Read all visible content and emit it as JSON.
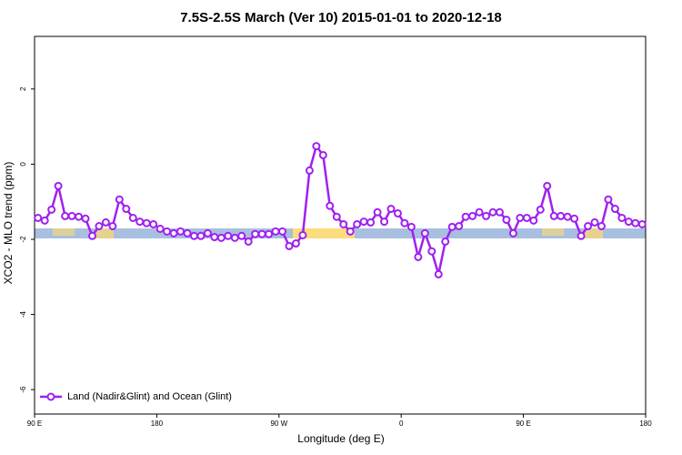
{
  "chart_data": {
    "type": "line",
    "title": "7.5S-2.5S March (Ver 10)   2015-01-01 to 2020-12-18",
    "x_label": "Longitude (deg E)",
    "y_label": "XCO2 - MLO trend (ppm)",
    "xlim": [
      90,
      540
    ],
    "ylim": [
      -6.65,
      3.4
    ],
    "xticks": [
      {
        "value": 90,
        "label": "90 E"
      },
      180,
      {
        "value": 270,
        "label": "90 W"
      },
      {
        "value": 360,
        "label": "0"
      },
      {
        "value": 450,
        "label": "90 E"
      },
      {
        "value": 540,
        "label": "180"
      }
    ],
    "yticks": [
      2,
      0,
      -2,
      -4,
      -6
    ],
    "grid": false,
    "legend": "bottom-left",
    "x": [
      92.5,
      97.5,
      102.5,
      107.5,
      112.5,
      117.5,
      122.5,
      127.5,
      132.5,
      137.5,
      142.5,
      147.5,
      152.5,
      157.5,
      162.5,
      167.5,
      172.5,
      177.5,
      182.5,
      187.5,
      192.5,
      197.5,
      202.5,
      207.5,
      212.5,
      217.5,
      222.5,
      227.5,
      232.5,
      237.5,
      242.5,
      247.5,
      252.5,
      257.5,
      262.5,
      267.5,
      272.5,
      277.5,
      282.5,
      287.5,
      292.5,
      297.5,
      302.5,
      307.5,
      312.5,
      317.5,
      322.5,
      327.5,
      332.5,
      337.5,
      342.5,
      347.5,
      352.5,
      357.5,
      362.5,
      367.5,
      372.5,
      377.5,
      382.5,
      387.5,
      392.5,
      397.5,
      402.5,
      407.5,
      412.5,
      417.5,
      422.5,
      427.5,
      432.5,
      437.5,
      442.5,
      447.5,
      452.5,
      457.5,
      462.5,
      467.5,
      472.5,
      477.5,
      482.5,
      487.5,
      492.5,
      497.5,
      502.5,
      507.5,
      512.5,
      517.5,
      522.5,
      527.5,
      532.5,
      537.5
    ],
    "series": [
      {
        "name": "Land (Nadir&Glint) and Ocean (Glint)",
        "color": "#a020f0",
        "values": [
          -1.43,
          -1.5,
          -1.21,
          -0.58,
          -1.38,
          -1.38,
          -1.4,
          -1.45,
          -1.91,
          -1.65,
          -1.55,
          -1.65,
          -0.94,
          -1.19,
          -1.43,
          -1.53,
          -1.57,
          -1.6,
          -1.72,
          -1.79,
          -1.84,
          -1.79,
          -1.84,
          -1.91,
          -1.91,
          -1.84,
          -1.94,
          -1.96,
          -1.91,
          -1.96,
          -1.91,
          -2.06,
          -1.86,
          -1.86,
          -1.86,
          -1.79,
          -1.79,
          -2.18,
          -2.11,
          -1.89,
          -0.17,
          0.48,
          0.24,
          -1.11,
          -1.4,
          -1.6,
          -1.79,
          -1.6,
          -1.53,
          -1.55,
          -1.28,
          -1.53,
          -1.19,
          -1.31,
          -1.57,
          -1.67,
          -2.47,
          -1.84,
          -2.32,
          -2.93,
          -2.06,
          -1.67,
          -1.65,
          -1.4,
          -1.38,
          -1.28,
          -1.38,
          -1.28,
          -1.28,
          -1.48,
          -1.84,
          -1.43,
          -1.43,
          -1.5,
          -1.21,
          -0.58,
          -1.38,
          -1.38,
          -1.4,
          -1.45,
          -1.91,
          -1.65,
          -1.55,
          -1.65,
          -0.94,
          -1.19,
          -1.43,
          -1.53,
          -1.57,
          -1.6
        ]
      }
    ]
  }
}
